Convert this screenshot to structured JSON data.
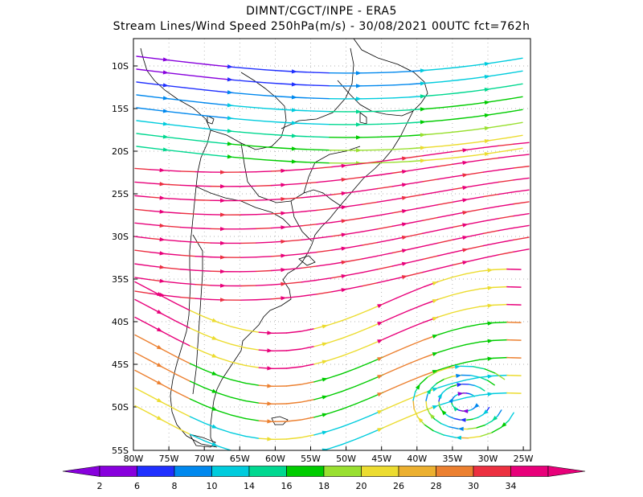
{
  "header": {
    "line1": "DIMNT/CGCT/INPE  -  ERA5",
    "line2": "Stream Lines/Wind Speed 250hPa(m/s)  -  30/08/2021 00UTC fct=762h"
  },
  "map": {
    "lat_labels": [
      "10S",
      "15S",
      "20S",
      "25S",
      "30S",
      "35S",
      "40S",
      "45S",
      "50S",
      "55S"
    ],
    "lon_labels": [
      "80W",
      "75W",
      "70W",
      "65W",
      "60W",
      "55W",
      "50W",
      "45W",
      "40W",
      "35W",
      "30W",
      "25W"
    ]
  },
  "colorbar": {
    "labels": [
      "2",
      "6",
      "8",
      "10",
      "14",
      "16",
      "18",
      "20",
      "26",
      "28",
      "30",
      "34"
    ],
    "colors": [
      "#8800dd",
      "#8800dd",
      "#2030ff",
      "#0088ee",
      "#00ccdd",
      "#00d890",
      "#00cc00",
      "#99e030",
      "#ecdc30",
      "#ecb030",
      "#ec8030",
      "#ec3040",
      "#e8007a",
      "#e8007a"
    ]
  }
}
